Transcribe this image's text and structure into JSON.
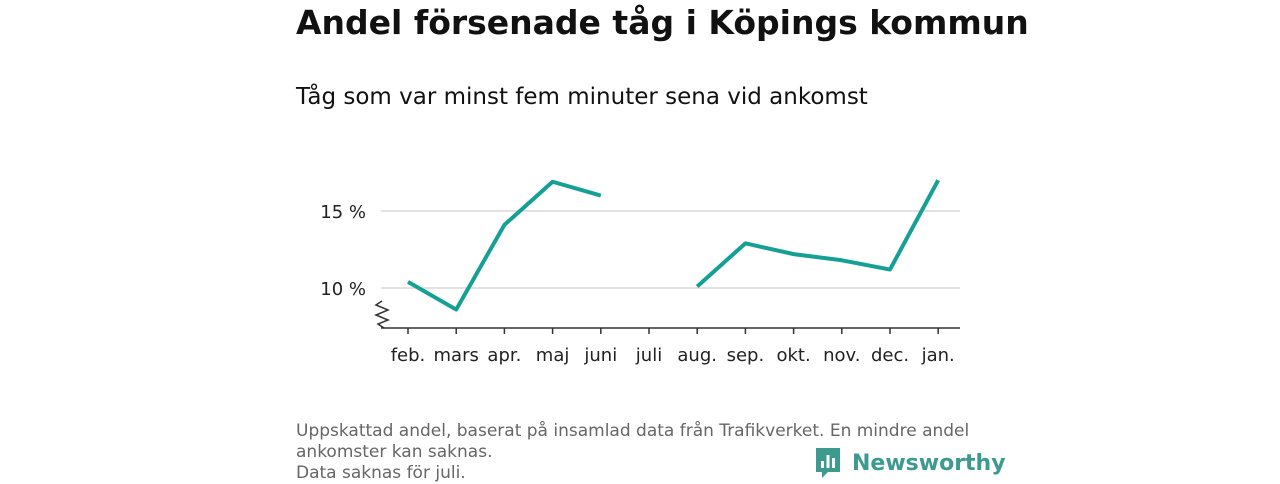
{
  "title": "Andel försenade tåg i Köpings kommun",
  "subtitle": "Tåg som var minst fem minuter sena vid ankomst",
  "footnote": [
    "Uppskattad andel, baserat på insamlad data från Trafikverket. En mindre andel",
    "ankomster kan saknas.",
    "Data saknas för juli."
  ],
  "brand": {
    "name": "Newsworthy",
    "color": "#3c9a8f"
  },
  "colors": {
    "line": "#15a095",
    "grid": "#d9d9d9",
    "axis": "#333333",
    "tick_text": "#222222"
  },
  "chart_data": {
    "type": "line",
    "categories": [
      "feb.",
      "mars",
      "apr.",
      "maj",
      "juni",
      "juli",
      "aug.",
      "sep.",
      "okt.",
      "nov.",
      "dec.",
      "jan."
    ],
    "series": [
      {
        "values": [
          10.4,
          8.6,
          14.1,
          16.9,
          16.0,
          null,
          10.1,
          12.9,
          12.2,
          11.8,
          11.2,
          17.0
        ]
      }
    ],
    "y_ticks": [
      10,
      15
    ],
    "y_tick_labels": [
      "10 %",
      "15 %"
    ],
    "ylim": [
      7.5,
      18.5
    ],
    "y_axis_break": true,
    "grid": "horizontal",
    "xlabel": "",
    "ylabel": ""
  }
}
